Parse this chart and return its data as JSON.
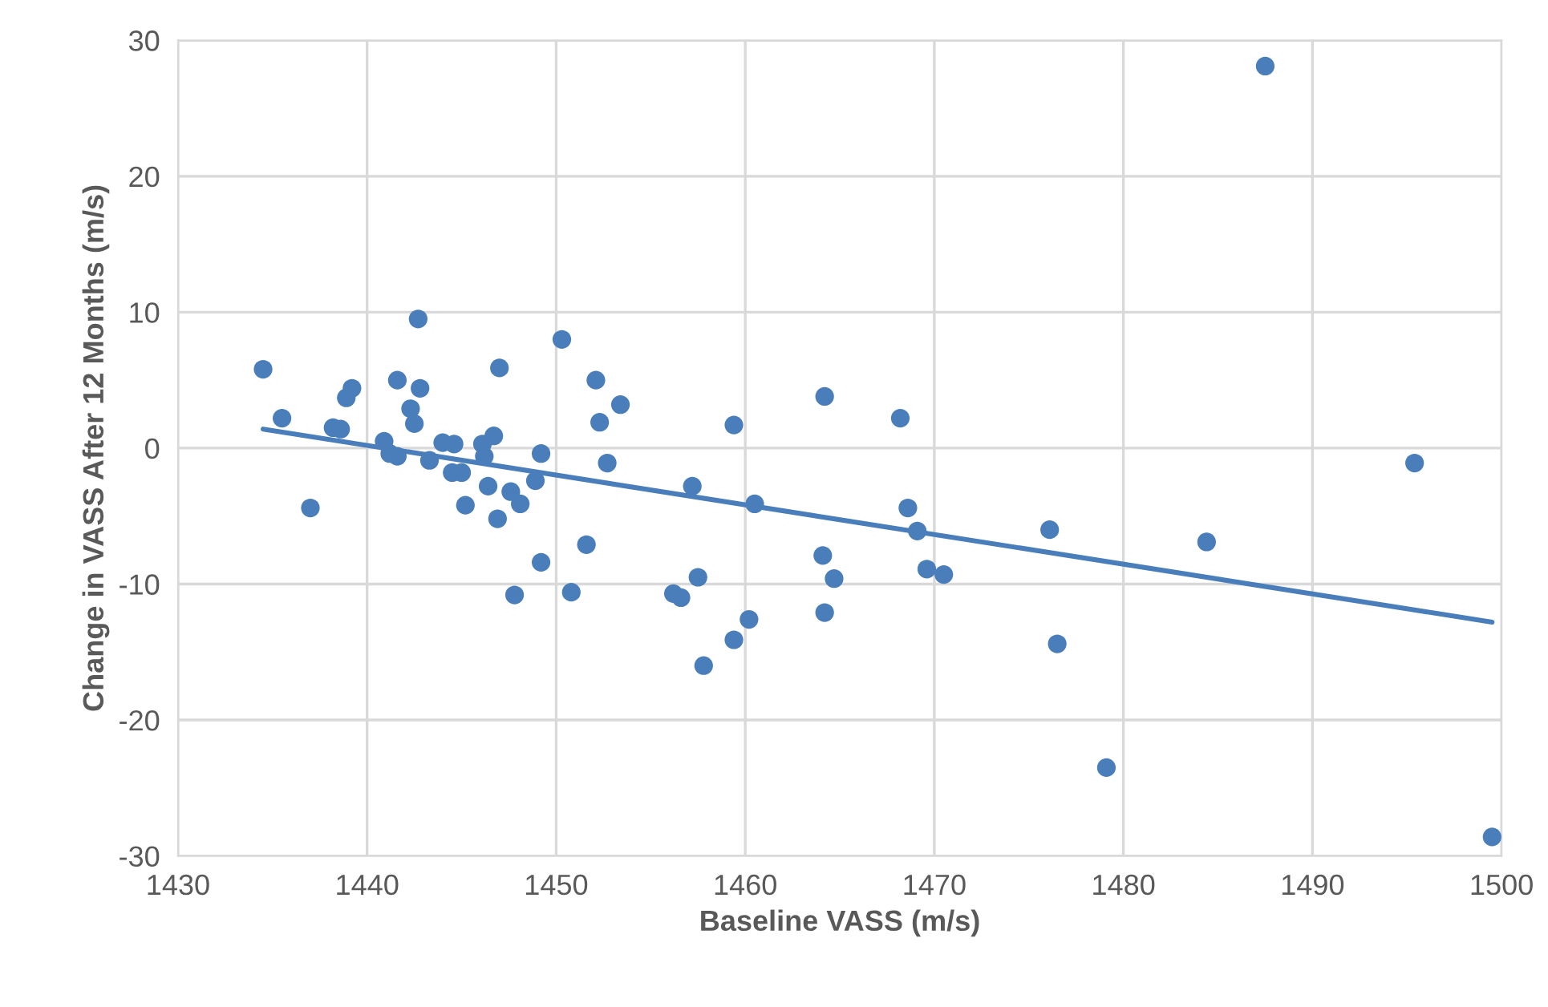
{
  "chart_data": {
    "type": "scatter",
    "xlabel": "Baseline VASS (m/s)",
    "ylabel": "Change in VASS After 12 Months (m/s)",
    "xlim": [
      1430,
      1500
    ],
    "xticks": [
      1430,
      1440,
      1450,
      1460,
      1470,
      1480,
      1490,
      1500
    ],
    "ylim": [
      -30,
      30
    ],
    "yticks": [
      -30,
      -20,
      -10,
      0,
      10,
      20,
      30
    ],
    "grid": true,
    "marker": "circle",
    "series": [
      {
        "color": "#4a7ebb",
        "x": [
          1434.5,
          1435.5,
          1437.0,
          1438.2,
          1438.6,
          1438.9,
          1439.2,
          1440.9,
          1441.2,
          1441.6,
          1441.6,
          1442.3,
          1442.5,
          1442.7,
          1442.8,
          1443.3,
          1444.0,
          1444.5,
          1444.6,
          1445.0,
          1445.2,
          1446.1,
          1446.2,
          1446.4,
          1446.7,
          1446.9,
          1447.0,
          1447.6,
          1447.8,
          1448.1,
          1448.9,
          1449.2,
          1449.2,
          1450.3,
          1450.8,
          1451.6,
          1452.1,
          1452.3,
          1452.7,
          1453.4,
          1456.2,
          1456.6,
          1457.2,
          1457.5,
          1457.8,
          1459.4,
          1459.4,
          1460.2,
          1460.5,
          1464.1,
          1464.2,
          1464.2,
          1464.7,
          1468.2,
          1468.6,
          1469.1,
          1469.6,
          1470.5,
          1476.1,
          1476.5,
          1479.1,
          1484.4,
          1487.5,
          1495.4,
          1499.5
        ],
        "values": [
          5.8,
          2.2,
          -4.4,
          1.5,
          1.4,
          3.7,
          4.4,
          0.5,
          -0.4,
          -0.6,
          5.0,
          2.9,
          1.8,
          9.5,
          4.4,
          -0.9,
          0.4,
          -1.8,
          0.3,
          -1.8,
          -4.2,
          0.3,
          -0.6,
          -2.8,
          0.9,
          -5.2,
          5.9,
          -3.2,
          -10.8,
          -4.1,
          -2.4,
          -0.4,
          -8.4,
          8.0,
          -10.6,
          -7.1,
          5.0,
          1.9,
          -1.1,
          3.2,
          -10.7,
          -11.0,
          -2.8,
          -9.5,
          -16.0,
          -14.1,
          1.7,
          -12.6,
          -4.1,
          -7.9,
          3.8,
          -12.1,
          -9.6,
          2.2,
          -4.4,
          -6.1,
          -8.9,
          -9.3,
          -6.0,
          -14.4,
          -23.5,
          -6.9,
          28.1,
          -1.1,
          -28.6
        ]
      },
      {
        "type": "line",
        "color": "#4a7ebb",
        "x": [
          1434.5,
          1499.5
        ],
        "values": [
          1.4,
          -12.8
        ],
        "marker": "none",
        "line_style": "solid"
      }
    ]
  }
}
